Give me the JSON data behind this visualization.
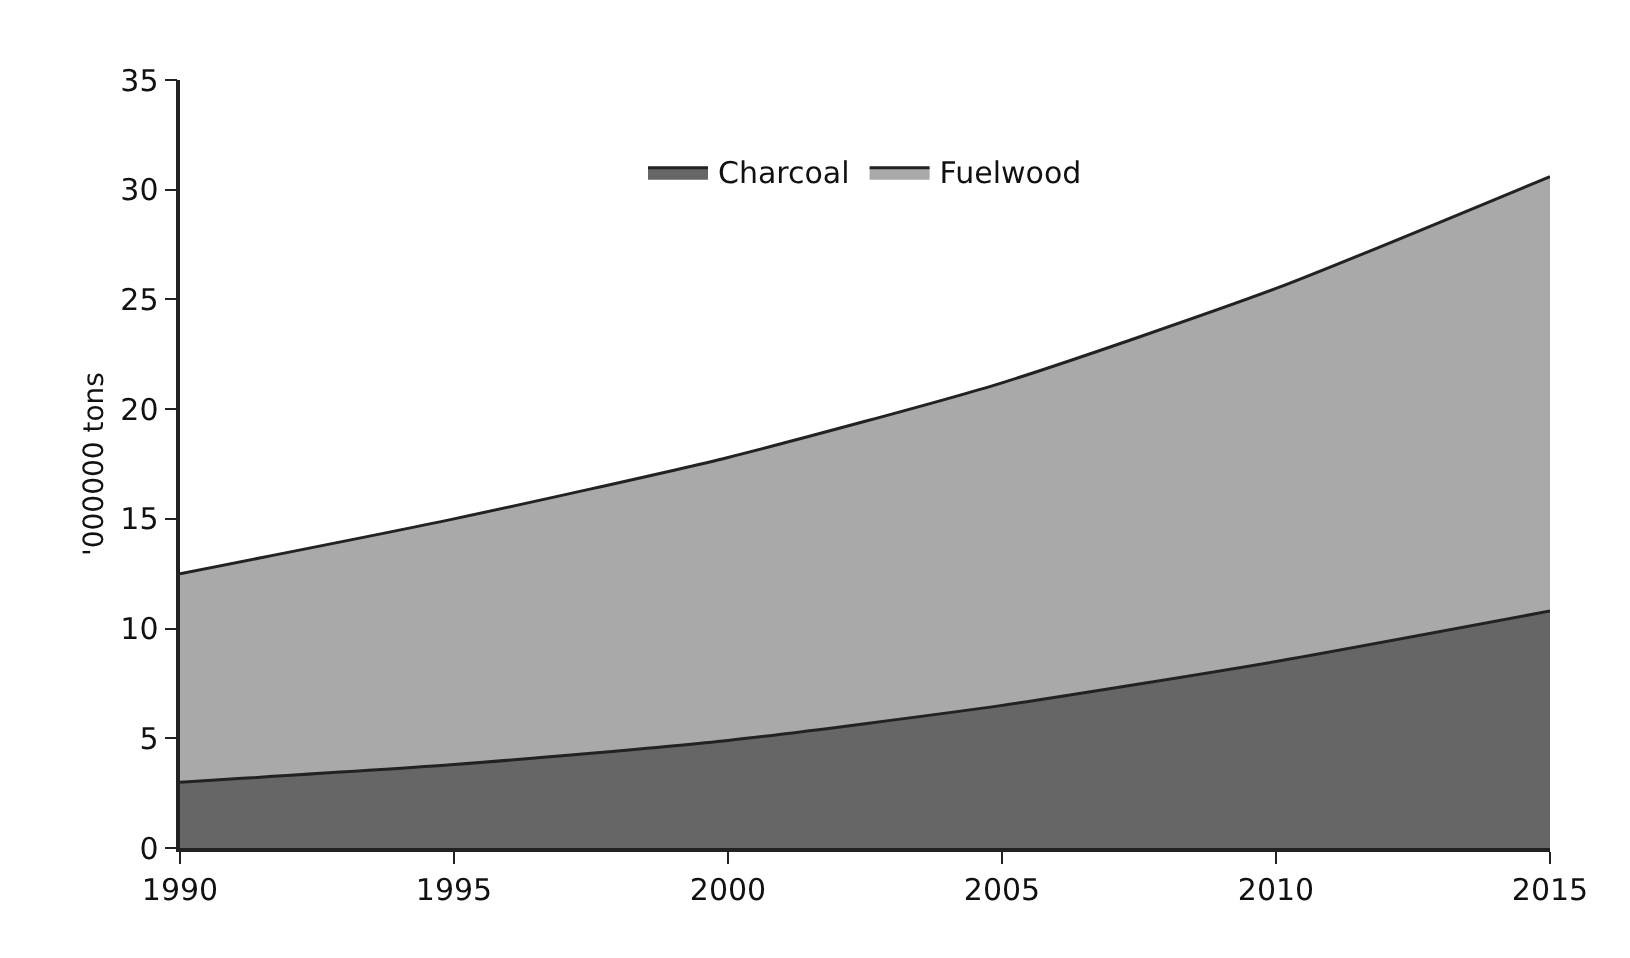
{
  "chart_data": {
    "type": "area",
    "stacked": true,
    "ylabel": "'000000 tons",
    "x": [
      1990,
      1995,
      2000,
      2005,
      2010,
      2015
    ],
    "series": [
      {
        "name": "Charcoal",
        "color": "#666666",
        "values": [
          3.0,
          3.8,
          4.9,
          6.5,
          8.5,
          10.8
        ]
      },
      {
        "name": "Fuelwood",
        "color": "#a9a9a9",
        "values": [
          9.5,
          11.2,
          12.9,
          14.7,
          17.0,
          19.8
        ]
      }
    ],
    "xlim": [
      1990,
      2015
    ],
    "xticks": [
      1990,
      1995,
      2000,
      2005,
      2010,
      2015
    ],
    "ylim": [
      0,
      35
    ],
    "yticks": [
      0,
      5,
      10,
      15,
      20,
      25,
      30,
      35
    ],
    "grid": false,
    "legend": "top",
    "marker": "none"
  }
}
